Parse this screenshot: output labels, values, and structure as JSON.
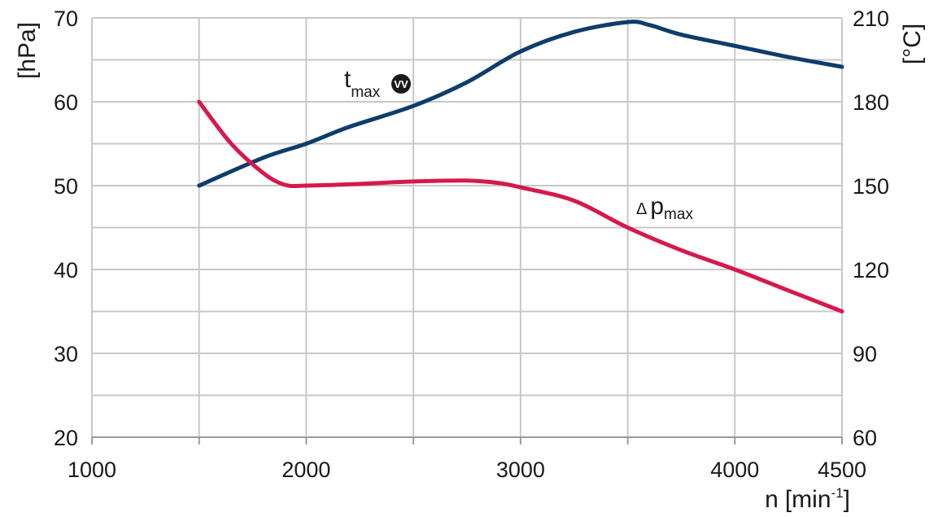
{
  "chart_data": {
    "type": "line",
    "x_axis": {
      "label_main": "n",
      "label_unit": "[min",
      "label_sup": "-1",
      "label_close": "]",
      "range": [
        1000,
        4500
      ],
      "ticks": [
        1000,
        2000,
        3000,
        4000,
        4500
      ],
      "tick_labels": [
        "1000",
        "2000",
        "3000",
        "4000",
        "4500"
      ],
      "minor_gridlines": [
        1500,
        2500,
        3500
      ]
    },
    "y_left": {
      "label": "[hPa]",
      "range": [
        20,
        70
      ],
      "ticks": [
        20,
        30,
        40,
        50,
        60,
        70
      ],
      "tick_labels": [
        "20",
        "30",
        "40",
        "50",
        "60",
        "70"
      ]
    },
    "y_right": {
      "label": "[°C]",
      "range": [
        60,
        210
      ],
      "ticks": [
        60,
        90,
        120,
        150,
        180,
        210
      ],
      "tick_labels": [
        "60",
        "90",
        "120",
        "150",
        "180",
        "210"
      ]
    },
    "grid": true,
    "series": [
      {
        "id": "t_max",
        "axis": "right",
        "color": "#0d3d6b",
        "label_main": "t",
        "label_sub": "max",
        "label_badge": "VV",
        "x": [
          1500,
          1800,
          2000,
          2200,
          2500,
          2750,
          3000,
          3250,
          3500,
          3600,
          3750,
          4000,
          4250,
          4500
        ],
        "y": [
          150,
          160,
          165,
          171,
          178.5,
          187,
          198,
          205,
          208.5,
          207.5,
          204,
          200,
          196,
          192.5
        ]
      },
      {
        "id": "delta_p_max",
        "axis": "left",
        "color": "#d6194b",
        "label_prefix": "Δ",
        "label_main": "p",
        "label_sub": "max",
        "x": [
          1500,
          1650,
          1800,
          1900,
          2000,
          2250,
          2500,
          2750,
          2900,
          3000,
          3250,
          3500,
          3750,
          4000,
          4250,
          4500
        ],
        "y": [
          60,
          55,
          51.5,
          50.1,
          50,
          50.2,
          50.5,
          50.6,
          50.3,
          49.8,
          48.2,
          45,
          42.3,
          40,
          37.5,
          35
        ]
      }
    ]
  }
}
